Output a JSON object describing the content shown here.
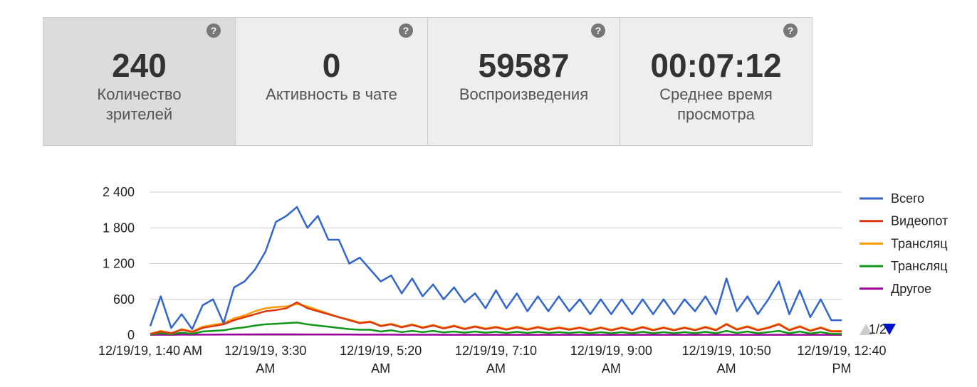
{
  "cards": [
    {
      "value": "240",
      "label": "Количество зрителей",
      "help": "?",
      "active": true
    },
    {
      "value": "0",
      "label": "Активность в чате",
      "help": "?",
      "active": false
    },
    {
      "value": "59587",
      "label": "Воспроизведения",
      "help": "?",
      "active": false
    },
    {
      "value": "00:07:12",
      "label": "Среднее время просмотра",
      "help": "?",
      "active": false
    }
  ],
  "chart_data": {
    "type": "line",
    "categories": [
      "12/19/19, 1:40 AM",
      null,
      null,
      null,
      null,
      null,
      null,
      null,
      null,
      null,
      null,
      "12/19/19, 3:30 AM",
      null,
      null,
      null,
      null,
      null,
      null,
      null,
      null,
      null,
      null,
      "12/19/19, 5:20 AM",
      null,
      null,
      null,
      null,
      null,
      null,
      null,
      null,
      null,
      null,
      "12/19/19, 7:10 AM",
      null,
      null,
      null,
      null,
      null,
      null,
      null,
      null,
      null,
      null,
      "12/19/19, 9:00 AM",
      null,
      null,
      null,
      null,
      null,
      null,
      null,
      null,
      null,
      null,
      "12/19/19, 10:50 AM",
      null,
      null,
      null,
      null,
      null,
      null,
      null,
      null,
      null,
      null,
      "12/19/19, 12:40 PM"
    ],
    "series": [
      {
        "name": "Всего",
        "color": "#3366cc",
        "values": [
          150,
          650,
          120,
          350,
          100,
          500,
          600,
          200,
          800,
          900,
          1100,
          1400,
          1900,
          2000,
          2150,
          1800,
          2000,
          1600,
          1600,
          1200,
          1300,
          1100,
          900,
          1000,
          700,
          950,
          650,
          850,
          600,
          800,
          550,
          700,
          450,
          750,
          450,
          700,
          400,
          650,
          400,
          650,
          400,
          600,
          350,
          600,
          350,
          600,
          350,
          600,
          350,
          600,
          350,
          600,
          400,
          650,
          350,
          950,
          400,
          650,
          350,
          600,
          900,
          350,
          750,
          300,
          600,
          250,
          250
        ]
      },
      {
        "name": "Видеопот",
        "color": "#dc3912",
        "values": [
          20,
          60,
          30,
          90,
          50,
          120,
          150,
          180,
          250,
          300,
          350,
          400,
          420,
          450,
          550,
          450,
          400,
          350,
          300,
          250,
          200,
          220,
          150,
          180,
          130,
          170,
          120,
          160,
          110,
          150,
          100,
          140,
          100,
          130,
          90,
          130,
          90,
          130,
          90,
          120,
          90,
          120,
          80,
          120,
          80,
          120,
          80,
          130,
          80,
          120,
          80,
          120,
          80,
          130,
          80,
          180,
          90,
          140,
          80,
          120,
          180,
          80,
          140,
          70,
          120,
          60,
          60
        ]
      },
      {
        "name": "Трансляц",
        "color": "#ff9900",
        "values": [
          20,
          70,
          30,
          100,
          60,
          140,
          170,
          200,
          280,
          330,
          400,
          450,
          470,
          480,
          520,
          480,
          420,
          360,
          300,
          260,
          210,
          230,
          160,
          190,
          140,
          180,
          130,
          170,
          120,
          160,
          110,
          150,
          110,
          140,
          100,
          140,
          100,
          140,
          100,
          130,
          100,
          130,
          90,
          130,
          90,
          130,
          90,
          140,
          90,
          130,
          90,
          130,
          90,
          140,
          90,
          190,
          100,
          150,
          90,
          130,
          190,
          90,
          150,
          80,
          130,
          70,
          70
        ]
      },
      {
        "name": "Трансляц",
        "color": "#109618",
        "values": [
          10,
          30,
          15,
          40,
          20,
          60,
          70,
          80,
          110,
          130,
          160,
          180,
          190,
          200,
          210,
          180,
          160,
          140,
          120,
          100,
          90,
          90,
          60,
          80,
          50,
          70,
          50,
          70,
          45,
          60,
          40,
          60,
          40,
          55,
          35,
          55,
          35,
          55,
          35,
          50,
          35,
          50,
          30,
          50,
          30,
          50,
          30,
          55,
          30,
          50,
          30,
          50,
          30,
          55,
          30,
          70,
          35,
          60,
          30,
          50,
          70,
          30,
          60,
          25,
          50,
          20,
          20
        ]
      },
      {
        "name": "Другое",
        "color": "#990099",
        "values": [
          5,
          6,
          5,
          7,
          6,
          8,
          8,
          9,
          10,
          10,
          12,
          12,
          12,
          12,
          12,
          11,
          10,
          10,
          9,
          9,
          8,
          8,
          7,
          7,
          6,
          6,
          6,
          6,
          5,
          5,
          5,
          5,
          5,
          5,
          5,
          5,
          5,
          5,
          5,
          5,
          5,
          5,
          5,
          5,
          5,
          5,
          5,
          5,
          5,
          5,
          5,
          5,
          5,
          5,
          5,
          5,
          5,
          5,
          5,
          5,
          5,
          5,
          5,
          5,
          5,
          5,
          5
        ]
      }
    ],
    "ylim": [
      0,
      2400
    ],
    "yticks": [
      0,
      600,
      {
        "value": 1200,
        "label": "1 200"
      },
      {
        "value": 1800,
        "label": "1 800"
      },
      {
        "value": 2400,
        "label": "2 400"
      }
    ],
    "grid": true,
    "legend": "right",
    "legend_page": "1/2"
  }
}
